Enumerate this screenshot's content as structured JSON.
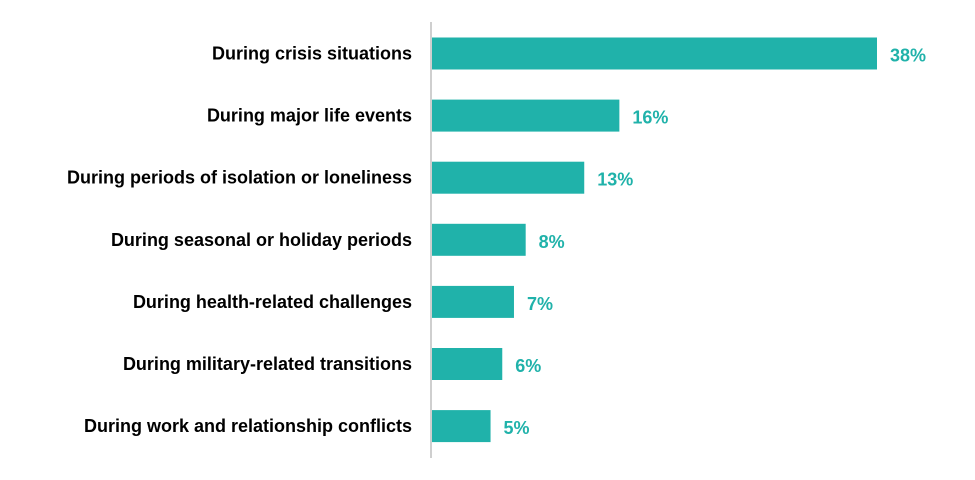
{
  "chart_data": {
    "type": "bar",
    "orientation": "horizontal",
    "title": "",
    "xlabel": "",
    "ylabel": "",
    "categories": [
      "During crisis situations",
      "During major life events",
      "During periods of isolation or loneliness",
      "During seasonal or holiday periods",
      "During health-related challenges",
      "During military-related transitions",
      "During work and relationship conflicts"
    ],
    "values": [
      38,
      16,
      13,
      8,
      7,
      6,
      5
    ],
    "value_labels": [
      "38%",
      "16%",
      "13%",
      "8%",
      "7%",
      "6%",
      "5%"
    ],
    "unit": "%",
    "xlim": [
      0,
      40
    ],
    "grid": false,
    "legend": "none",
    "bar_color": "#20B2AA",
    "label_color": "#20B2AA",
    "axis_color": "#BFBFBF"
  }
}
